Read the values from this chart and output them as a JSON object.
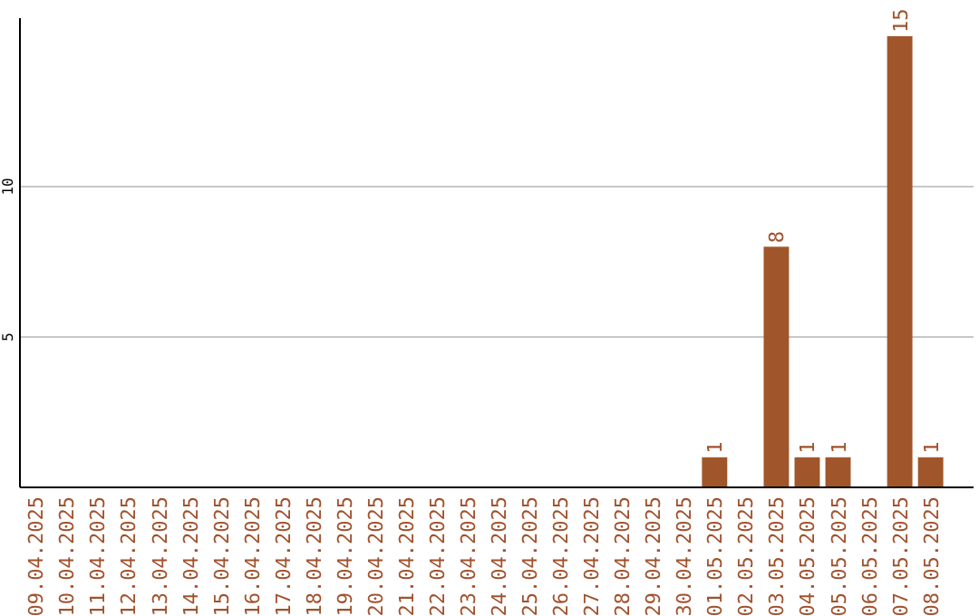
{
  "chart_data": {
    "type": "bar",
    "categories": [
      "09.04.2025",
      "10.04.2025",
      "11.04.2025",
      "12.04.2025",
      "13.04.2025",
      "14.04.2025",
      "15.04.2025",
      "16.04.2025",
      "17.04.2025",
      "18.04.2025",
      "19.04.2025",
      "20.04.2025",
      "21.04.2025",
      "22.04.2025",
      "23.04.2025",
      "24.04.2025",
      "25.04.2025",
      "26.04.2025",
      "27.04.2025",
      "28.04.2025",
      "29.04.2025",
      "30.04.2025",
      "01.05.2025",
      "02.05.2025",
      "03.05.2025",
      "04.05.2025",
      "05.05.2025",
      "06.05.2025",
      "07.05.2025",
      "08.05.2025"
    ],
    "values": [
      0,
      0,
      0,
      0,
      0,
      0,
      0,
      0,
      0,
      0,
      0,
      0,
      0,
      0,
      0,
      0,
      0,
      0,
      0,
      0,
      0,
      0,
      1,
      0,
      8,
      1,
      1,
      0,
      15,
      1
    ],
    "value_labels": [
      null,
      null,
      null,
      null,
      null,
      null,
      null,
      null,
      null,
      null,
      null,
      null,
      null,
      null,
      null,
      null,
      null,
      null,
      null,
      null,
      null,
      null,
      "1",
      null,
      "8",
      "1",
      "1",
      null,
      "15",
      "1"
    ],
    "color": "#a0562a",
    "ylim": [
      0,
      15.6
    ],
    "yticks": [
      5,
      10
    ],
    "grid": "y"
  }
}
